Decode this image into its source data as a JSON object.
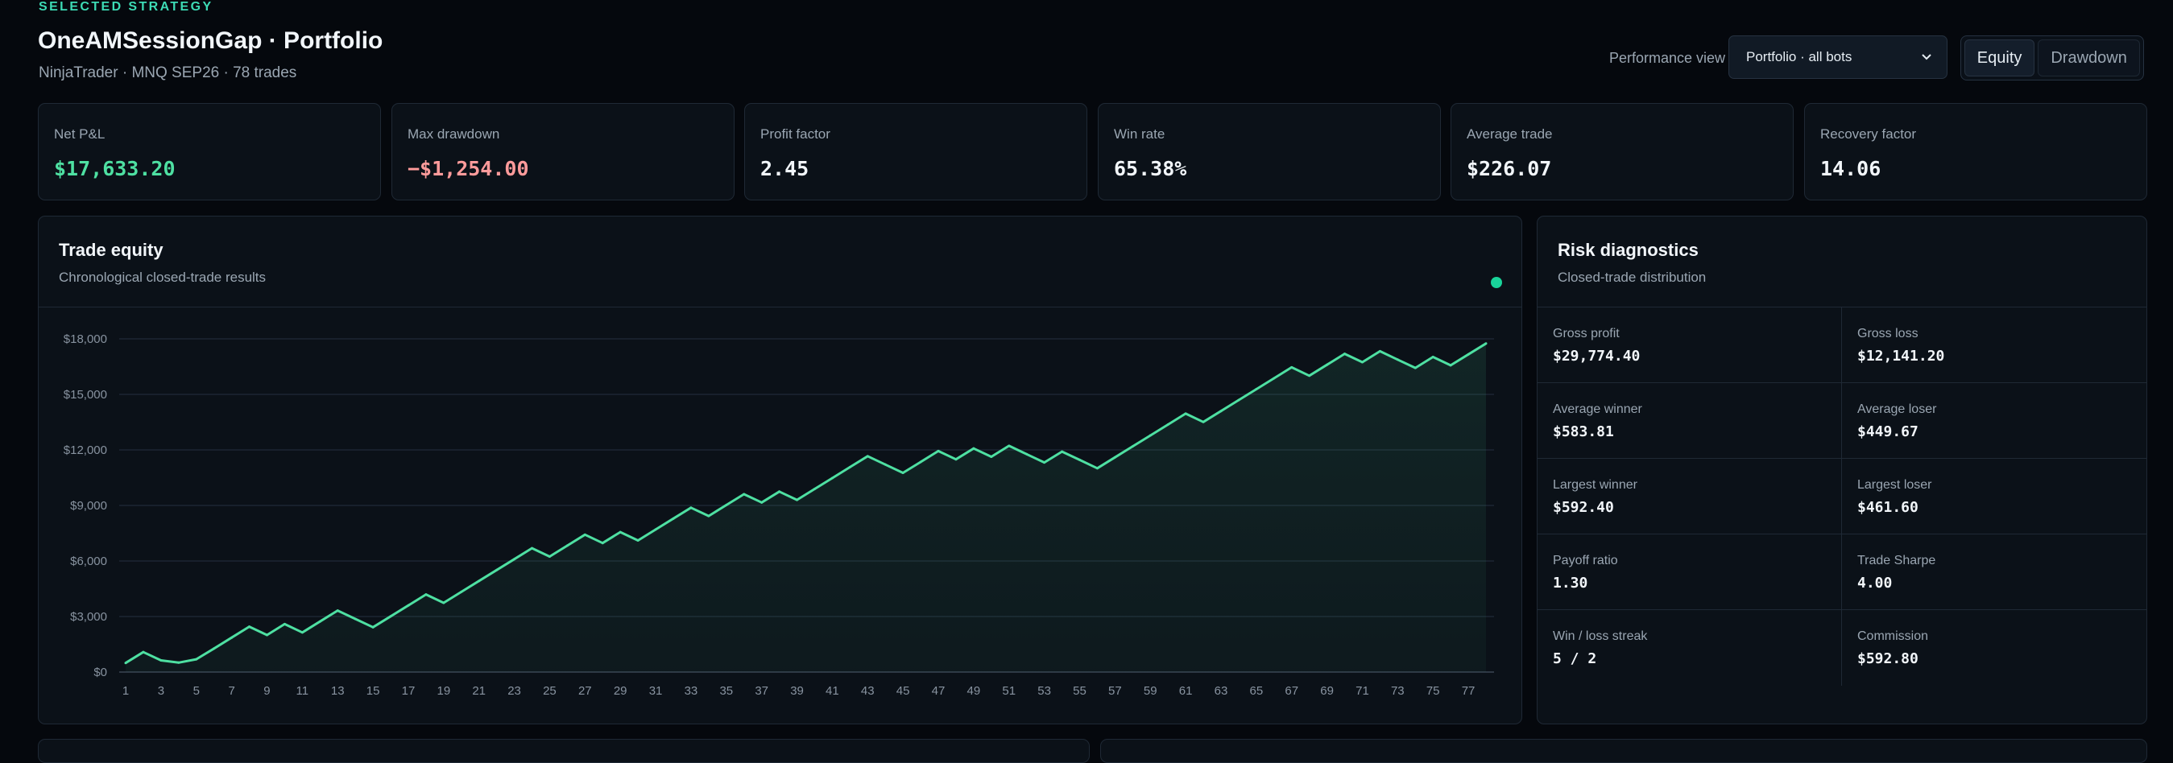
{
  "header": {
    "eyebrow": "SELECTED STRATEGY",
    "title": "OneAMSessionGap · Portfolio",
    "subtitle": "NinjaTrader · MNQ SEP26 · 78 trades"
  },
  "controls": {
    "performance_view_label": "Performance view",
    "performance_view_value": "Portfolio · all bots",
    "view_toggle": {
      "equity": "Equity",
      "drawdown": "Drawdown",
      "active": "equity"
    }
  },
  "kpis": [
    {
      "label": "Net P&L",
      "value": "$17,633.20",
      "tone": "pos"
    },
    {
      "label": "Max drawdown",
      "value": "−$1,254.00",
      "tone": "neg"
    },
    {
      "label": "Profit factor",
      "value": "2.45",
      "tone": "neutral"
    },
    {
      "label": "Win rate",
      "value": "65.38%",
      "tone": "neutral"
    },
    {
      "label": "Average trade",
      "value": "$226.07",
      "tone": "neutral"
    },
    {
      "label": "Recovery factor",
      "value": "14.06",
      "tone": "neutral"
    }
  ],
  "equity_panel": {
    "title": "Trade equity",
    "subtitle": "Chronological closed-trade results",
    "live_indicator_color": "#19d49a"
  },
  "risk_panel": {
    "title": "Risk diagnostics",
    "subtitle": "Closed-trade distribution",
    "stats": [
      {
        "label": "Gross profit",
        "value": "$29,774.40"
      },
      {
        "label": "Gross loss",
        "value": "$12,141.20"
      },
      {
        "label": "Average winner",
        "value": "$583.81"
      },
      {
        "label": "Average loser",
        "value": "$449.67"
      },
      {
        "label": "Largest winner",
        "value": "$592.40"
      },
      {
        "label": "Largest loser",
        "value": "$461.60"
      },
      {
        "label": "Payoff ratio",
        "value": "1.30"
      },
      {
        "label": "Trade Sharpe",
        "value": "4.00"
      },
      {
        "label": "Win / loss streak",
        "value": "5 / 2"
      },
      {
        "label": "Commission",
        "value": "$592.80"
      }
    ]
  },
  "colors": {
    "accent": "#3ddbb5",
    "line": "#4ee0a2",
    "positive": "#4ee0a2",
    "negative": "#ff9b9b",
    "background": "#05080d",
    "panel": "#0b1118"
  },
  "chart_data": {
    "type": "area",
    "title": "",
    "xlabel": "",
    "ylabel": "",
    "xlim": [
      1,
      78
    ],
    "ylim": [
      0,
      18000
    ],
    "y_ticks": [
      "$0",
      "$3,000",
      "$6,000",
      "$9,000",
      "$12,000",
      "$15,000",
      "$18,000"
    ],
    "y_tick_values": [
      0,
      3000,
      6000,
      9000,
      12000,
      15000,
      18000
    ],
    "x_ticks": [
      1,
      3,
      5,
      7,
      9,
      11,
      13,
      15,
      17,
      19,
      21,
      23,
      25,
      27,
      29,
      31,
      33,
      35,
      37,
      39,
      41,
      43,
      45,
      47,
      49,
      51,
      53,
      55,
      57,
      59,
      61,
      63,
      65,
      67,
      69,
      71,
      73,
      75,
      77
    ],
    "grid": true,
    "legend": "none",
    "series": [
      {
        "x": [
          1,
          2,
          3,
          4,
          5,
          6,
          7,
          8,
          9,
          10,
          11,
          12,
          13,
          14,
          15,
          16,
          17,
          18,
          19,
          20,
          21,
          22,
          23,
          24,
          25,
          26,
          27,
          28,
          29,
          30,
          31,
          32,
          33,
          34,
          35,
          36,
          37,
          38,
          39,
          40,
          41,
          42,
          43,
          44,
          45,
          46,
          47,
          48,
          49,
          50,
          51,
          52,
          53,
          54,
          55,
          56,
          57,
          58,
          59,
          60,
          61,
          62,
          63,
          64,
          65,
          66,
          67,
          68,
          69,
          70,
          71,
          72,
          73,
          74,
          75,
          76,
          77,
          78
        ],
        "values": [
          490,
          1080,
          630,
          510,
          690,
          1270,
          1860,
          2450,
          2000,
          2590,
          2140,
          2730,
          3320,
          2870,
          2420,
          3010,
          3600,
          4190,
          3740,
          4330,
          4920,
          5510,
          6100,
          6690,
          6240,
          6830,
          7420,
          6970,
          7560,
          7110,
          7700,
          8290,
          8880,
          8430,
          9020,
          9610,
          9160,
          9750,
          9300,
          9890,
          10480,
          11070,
          11660,
          11210,
          10760,
          11350,
          11940,
          11490,
          12080,
          11630,
          12220,
          11770,
          11320,
          11910,
          11460,
          11010,
          11600,
          12190,
          12780,
          13370,
          13960,
          13510,
          14100,
          14690,
          15280,
          15870,
          16460,
          16010,
          16600,
          17190,
          16740,
          17330,
          16880,
          16430,
          17020,
          16570,
          17160,
          17750
        ]
      }
    ]
  }
}
